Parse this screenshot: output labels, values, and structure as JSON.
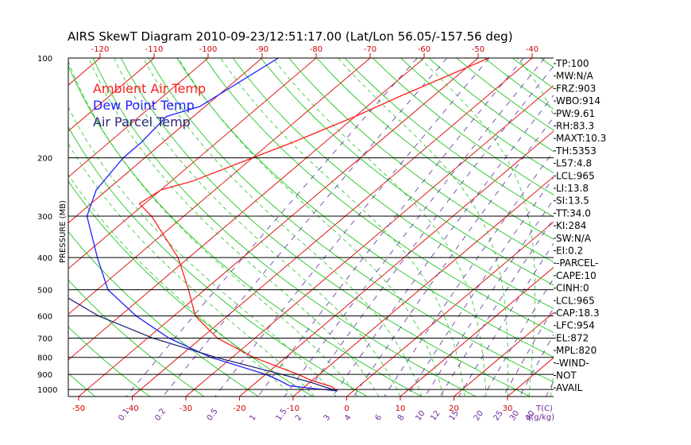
{
  "chart_data": {
    "type": "line",
    "title": "AIRS SkewT Diagram 2010-09-23/12:51:17.00 (Lat/Lon 56.05/-157.56 deg)",
    "ylabel": "PRESSURE (MB)",
    "xlabel": "T(C)",
    "mixing_ratio_unit": "q(g/kg)",
    "pressure_ticks": [
      100,
      200,
      300,
      400,
      500,
      600,
      700,
      800,
      900,
      1000
    ],
    "top_temp_ticks": [
      "-120",
      "-110",
      "-100",
      "-90",
      "-80",
      "-70",
      "-60",
      "-50",
      "-40"
    ],
    "bottom_temp_ticks": [
      "-50",
      "-40",
      "-30",
      "-20",
      "-10",
      "0",
      "10",
      "20",
      "30"
    ],
    "mixing_ratio_labels": [
      "0.1",
      "0.2",
      "0.5",
      "1",
      "1.5",
      "2",
      "3",
      "4",
      "6",
      "8",
      "10",
      "12",
      "15",
      "20",
      "25",
      "30",
      "40"
    ],
    "legend": [
      {
        "label": "Ambient Air Temp",
        "color": "#ff2020"
      },
      {
        "label": "Dew Point Temp",
        "color": "#2020ff"
      },
      {
        "label": "Air Parcel Temp",
        "color": "#2a2a7a"
      }
    ],
    "series": [
      {
        "name": "Ambient Air Temp",
        "color": "#ff2020",
        "points": [
          [
            100,
            -48
          ],
          [
            130,
            -56
          ],
          [
            150,
            -60
          ],
          [
            180,
            -66
          ],
          [
            200,
            -70
          ],
          [
            235,
            -76
          ],
          [
            250,
            -80
          ],
          [
            275,
            -81
          ],
          [
            300,
            -76
          ],
          [
            400,
            -62
          ],
          [
            500,
            -53
          ],
          [
            600,
            -46
          ],
          [
            700,
            -37
          ],
          [
            800,
            -26
          ],
          [
            900,
            -14
          ],
          [
            940,
            -10
          ],
          [
            980,
            -5
          ],
          [
            1010,
            -3
          ]
        ]
      },
      {
        "name": "Dew Point Temp",
        "color": "#2020ff",
        "points": [
          [
            100,
            -87
          ],
          [
            140,
            -91
          ],
          [
            150,
            -95
          ],
          [
            180,
            -94
          ],
          [
            200,
            -94
          ],
          [
            250,
            -92
          ],
          [
            300,
            -88
          ],
          [
            400,
            -77
          ],
          [
            500,
            -68
          ],
          [
            600,
            -57
          ],
          [
            700,
            -46
          ],
          [
            800,
            -34
          ],
          [
            900,
            -20
          ],
          [
            940,
            -16
          ],
          [
            975,
            -13
          ],
          [
            1010,
            -3
          ]
        ]
      },
      {
        "name": "Air Parcel Temp",
        "color": "#2a2a7a",
        "points": [
          [
            100,
            -140
          ],
          [
            150,
            -128
          ],
          [
            200,
            -118
          ],
          [
            250,
            -110
          ],
          [
            300,
            -103
          ],
          [
            400,
            -90
          ],
          [
            500,
            -78
          ],
          [
            600,
            -64
          ],
          [
            700,
            -49
          ],
          [
            800,
            -33
          ],
          [
            900,
            -17
          ],
          [
            950,
            -10
          ],
          [
            1010,
            -3
          ]
        ]
      }
    ]
  },
  "indices": [
    "TP:100",
    "MW:N/A",
    "FRZ:903",
    "WBO:914",
    "PW:9.61",
    "RH:83.3",
    "MAXT:10.3",
    "TH:5353",
    "L57:4.8",
    "LCL:965",
    "LI:13.8",
    "SI:13.5",
    "TT:34.0",
    "KI:284",
    "SW:N/A",
    "EI:0.2",
    "-PARCEL-",
    "CAPE:10",
    "CINH:0",
    "LCL:965",
    "CAP:18.3",
    "LFC:954",
    "EL:872",
    "MPL:820",
    "-WIND-",
    "NOT",
    "AVAIL"
  ],
  "colors": {
    "isotherm": "#e00000",
    "dry_adiabat": "#22c522",
    "moist_adiabat": "#22c522",
    "mixing_ratio": "#5a2da0",
    "isobar": "#000000",
    "top_tick_label": "#cc0000",
    "bottom_tick_label": "#cc0000",
    "mixing_label": "#6a2a9a"
  }
}
